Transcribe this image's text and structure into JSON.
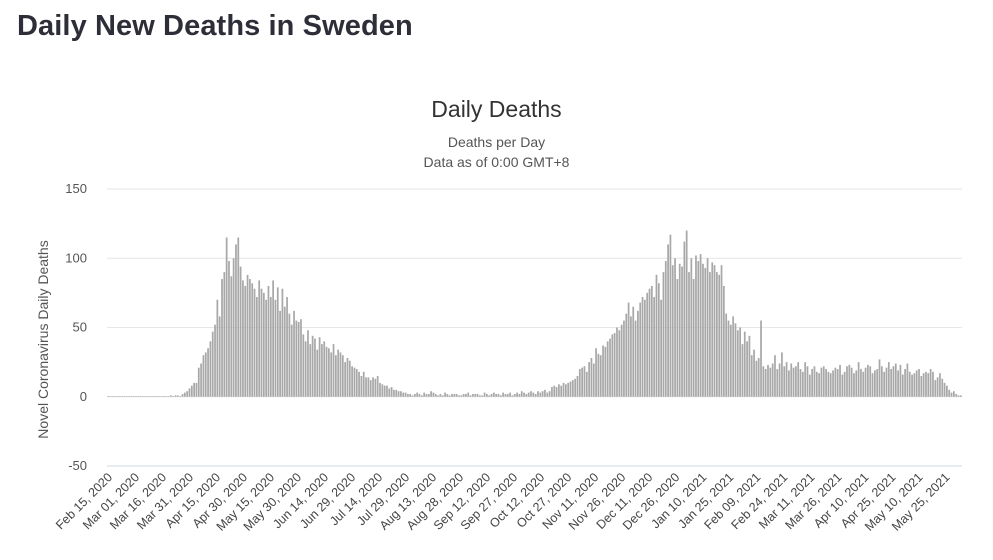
{
  "page": {
    "title": "Daily New Deaths in Sweden"
  },
  "chart_data": {
    "type": "bar",
    "title": "Daily Deaths",
    "subtitle": "Deaths per Day",
    "note": "Data as of 0:00 GMT+8",
    "xlabel": "",
    "ylabel": "Novel Coronavirus Daily Deaths",
    "ylim": [
      -50,
      150
    ],
    "yticks": [
      150,
      100,
      50,
      0,
      -50
    ],
    "grid": true,
    "bar_color": "#a8a8a8",
    "x_tick_labels": [
      "Feb 15, 2020",
      "Mar 01, 2020",
      "Mar 16, 2020",
      "Mar 31, 2020",
      "Apr 15, 2020",
      "Apr 30, 2020",
      "May 15, 2020",
      "May 30, 2020",
      "Jun 14, 2020",
      "Jun 29, 2020",
      "Jul 14, 2020",
      "Jul 29, 2020",
      "Aug 13, 2020",
      "Aug 28, 2020",
      "Sep 12, 2020",
      "Sep 27, 2020",
      "Oct 12, 2020",
      "Oct 27, 2020",
      "Nov 11, 2020",
      "Nov 26, 2020",
      "Dec 11, 2020",
      "Dec 26, 2020",
      "Jan 10, 2021",
      "Jan 25, 2021",
      "Feb 09, 2021",
      "Feb 24, 2021",
      "Mar 11, 2021",
      "Mar 26, 2021",
      "Apr 10, 2021",
      "Apr 25, 2021",
      "May 10, 2021",
      "May 25, 2021"
    ],
    "series": [
      {
        "name": "Daily Deaths",
        "start_date": "Feb 15, 2020",
        "values": [
          0,
          0,
          0,
          0,
          0,
          0,
          0,
          0,
          0,
          0,
          0,
          0,
          0,
          0,
          0,
          0,
          0,
          0,
          0,
          0,
          0,
          0,
          0,
          0,
          0,
          0,
          0,
          1,
          0,
          1,
          1,
          0,
          2,
          3,
          4,
          6,
          8,
          10,
          10,
          21,
          24,
          30,
          32,
          35,
          40,
          47,
          52,
          70,
          58,
          85,
          90,
          115,
          98,
          87,
          100,
          110,
          115,
          94,
          84,
          80,
          88,
          85,
          82,
          78,
          72,
          84,
          78,
          75,
          70,
          80,
          72,
          84,
          70,
          79,
          62,
          78,
          65,
          72,
          60,
          52,
          62,
          55,
          54,
          56,
          45,
          40,
          48,
          38,
          44,
          42,
          34,
          43,
          38,
          40,
          36,
          35,
          32,
          38,
          30,
          34,
          32,
          30,
          25,
          28,
          26,
          22,
          21,
          20,
          18,
          15,
          18,
          14,
          14,
          12,
          14,
          13,
          15,
          10,
          9,
          8,
          8,
          6,
          7,
          5,
          5,
          4,
          4,
          3,
          3,
          2,
          2,
          1,
          2,
          3,
          2,
          1,
          3,
          2,
          2,
          4,
          3,
          2,
          1,
          2,
          1,
          3,
          2,
          1,
          2,
          2,
          2,
          1,
          1,
          2,
          2,
          3,
          1,
          2,
          2,
          2,
          1,
          1,
          3,
          2,
          1,
          2,
          3,
          2,
          2,
          1,
          3,
          2,
          2,
          3,
          1,
          2,
          3,
          2,
          4,
          3,
          2,
          3,
          4,
          3,
          2,
          4,
          3,
          4,
          5,
          3,
          4,
          7,
          8,
          7,
          9,
          8,
          10,
          9,
          10,
          11,
          12,
          13,
          15,
          20,
          21,
          22,
          18,
          25,
          28,
          24,
          35,
          31,
          30,
          37,
          36,
          40,
          42,
          45,
          46,
          50,
          48,
          52,
          55,
          60,
          68,
          58,
          65,
          55,
          62,
          68,
          72,
          70,
          75,
          78,
          80,
          72,
          88,
          82,
          70,
          90,
          98,
          110,
          117,
          95,
          100,
          85,
          96,
          94,
          112,
          120,
          90,
          100,
          85,
          102,
          98,
          103,
          96,
          93,
          100,
          90,
          97,
          95,
          90,
          88,
          95,
          80,
          60,
          55,
          52,
          58,
          53,
          48,
          50,
          38,
          47,
          40,
          44,
          30,
          34,
          26,
          28,
          55,
          22,
          20,
          23,
          21,
          24,
          30,
          20,
          24,
          32,
          22,
          25,
          19,
          24,
          21,
          22,
          25,
          20,
          18,
          25,
          22,
          16,
          20,
          22,
          18,
          17,
          21,
          22,
          20,
          18,
          17,
          19,
          21,
          20,
          23,
          16,
          18,
          22,
          23,
          21,
          17,
          19,
          25,
          20,
          18,
          21,
          23,
          22,
          17,
          19,
          20,
          27,
          22,
          18,
          21,
          25,
          20,
          22,
          24,
          19,
          23,
          16,
          20,
          24,
          18,
          16,
          17,
          19,
          20,
          15,
          17,
          18,
          17,
          20,
          18,
          12,
          14,
          17,
          13,
          10,
          8,
          5,
          3,
          4,
          2,
          1,
          1
        ]
      }
    ]
  }
}
